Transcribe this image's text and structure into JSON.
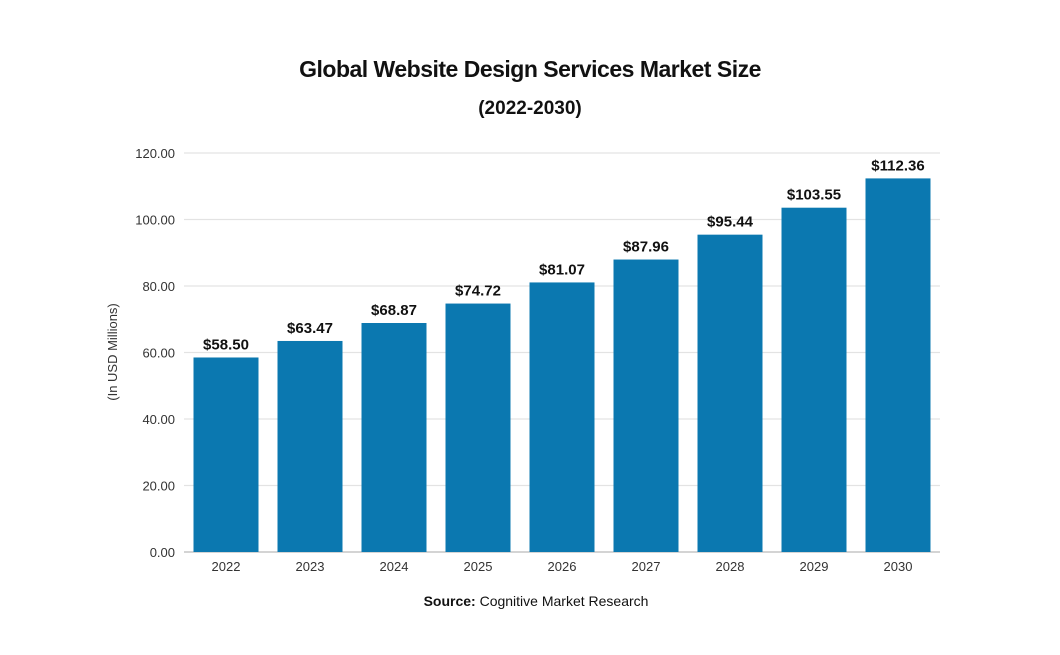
{
  "chart_data": {
    "type": "bar",
    "title": "Global Website Design Services Market Size",
    "subtitle": "(2022-2030)",
    "xlabel": "",
    "ylabel": "(In USD Millions)",
    "categories": [
      "2022",
      "2023",
      "2024",
      "2025",
      "2026",
      "2027",
      "2028",
      "2029",
      "2030"
    ],
    "values": [
      58.5,
      63.47,
      68.87,
      74.72,
      81.07,
      87.96,
      95.44,
      103.55,
      112.36
    ],
    "data_labels": [
      "$58.50",
      "$63.47",
      "$68.87",
      "$74.72",
      "$81.07",
      "$87.96",
      "$95.44",
      "$103.55",
      "$112.36"
    ],
    "ylim": [
      0,
      120
    ],
    "yticks": [
      "0.00",
      "20.00",
      "40.00",
      "60.00",
      "80.00",
      "100.00",
      "120.00"
    ],
    "grid": true,
    "bar_color": "#0b78b0"
  },
  "source": {
    "label": "Source:",
    "text": "Cognitive Market Research"
  }
}
